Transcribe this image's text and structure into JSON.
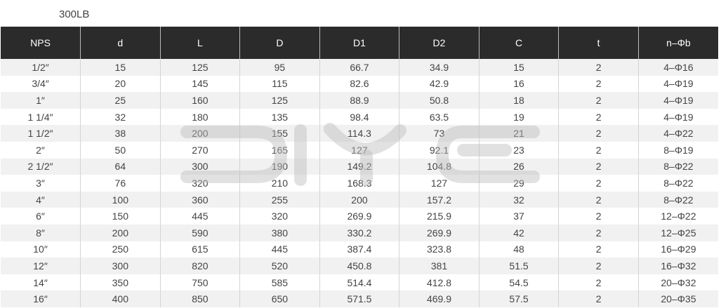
{
  "title": "300LB",
  "table": {
    "headers": [
      "NPS",
      "d",
      "L",
      "D",
      "D1",
      "D2",
      "C",
      "t",
      "n–Φb"
    ],
    "rows": [
      [
        "1/2″",
        "15",
        "125",
        "95",
        "66.7",
        "34.9",
        "15",
        "2",
        "4–Φ16"
      ],
      [
        "3/4″",
        "20",
        "145",
        "115",
        "82.6",
        "42.9",
        "16",
        "2",
        "4–Φ19"
      ],
      [
        "1″",
        "25",
        "160",
        "125",
        "88.9",
        "50.8",
        "18",
        "2",
        "4–Φ19"
      ],
      [
        "1 1/4″",
        "32",
        "180",
        "135",
        "98.4",
        "63.5",
        "19",
        "2",
        "4–Φ19"
      ],
      [
        "1 1/2″",
        "38",
        "200",
        "155",
        "114.3",
        "73",
        "21",
        "2",
        "4–Φ22"
      ],
      [
        "2″",
        "50",
        "270",
        "165",
        "127",
        "92.1",
        "23",
        "2",
        "8–Φ19"
      ],
      [
        "2 1/2″",
        "64",
        "300",
        "190",
        "149.2",
        "104.8",
        "26",
        "2",
        "8–Φ22"
      ],
      [
        "3″",
        "76",
        "320",
        "210",
        "168.3",
        "127",
        "29",
        "2",
        "8–Φ22"
      ],
      [
        "4″",
        "100",
        "360",
        "255",
        "200",
        "157.2",
        "32",
        "2",
        "8–Φ22"
      ],
      [
        "6″",
        "150",
        "445",
        "320",
        "269.9",
        "215.9",
        "37",
        "2",
        "12–Φ22"
      ],
      [
        "8″",
        "200",
        "590",
        "380",
        "330.2",
        "269.9",
        "42",
        "2",
        "12–Φ25"
      ],
      [
        "10″",
        "250",
        "615",
        "445",
        "387.4",
        "323.8",
        "48",
        "2",
        "16–Φ29"
      ],
      [
        "12″",
        "300",
        "820",
        "520",
        "450.8",
        "381",
        "51.5",
        "2",
        "16–Φ32"
      ],
      [
        "14″",
        "350",
        "750",
        "585",
        "514.4",
        "412.8",
        "54.5",
        "2",
        "20–Φ32"
      ],
      [
        "16″",
        "400",
        "850",
        "650",
        "571.5",
        "469.9",
        "57.5",
        "2",
        "20–Φ35"
      ]
    ]
  },
  "watermark": {
    "text": "DIYE",
    "color": "#c8c8c8"
  }
}
